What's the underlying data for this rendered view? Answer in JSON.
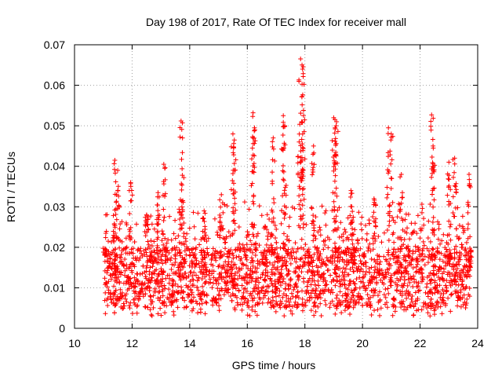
{
  "chart_data": {
    "type": "scatter",
    "title": "Day 198 of 2017, Rate Of TEC Index for receiver mall",
    "xlabel": "GPS time / hours",
    "ylabel": "ROTI / TECUs",
    "xlim": [
      10,
      24
    ],
    "ylim": [
      0,
      0.07
    ],
    "xticks": [
      10,
      12,
      14,
      16,
      18,
      20,
      22,
      24
    ],
    "xtick_labels": [
      "10",
      "12",
      "14",
      "16",
      "18",
      "20",
      "22",
      "24"
    ],
    "yticks": [
      0,
      0.01,
      0.02,
      0.03,
      0.04,
      0.05,
      0.06,
      0.07
    ],
    "ytick_labels": [
      "0",
      "0.01",
      "0.02",
      "0.03",
      "0.04",
      "0.05",
      "0.06",
      "0.07"
    ],
    "grid": true,
    "marker": "+",
    "marker_color": "#ff0000",
    "data_extent": {
      "x_start": 11.05,
      "x_end": 23.75
    },
    "series": [
      {
        "name": "ROTI",
        "description_points": [
          {
            "x": 11.05,
            "y": 0.018
          },
          {
            "x": 11.4,
            "y": 0.0415
          },
          {
            "x": 11.5,
            "y": 0.039
          },
          {
            "x": 11.95,
            "y": 0.036
          },
          {
            "x": 12.5,
            "y": 0.028
          },
          {
            "x": 12.9,
            "y": 0.0335
          },
          {
            "x": 13.1,
            "y": 0.0405
          },
          {
            "x": 13.7,
            "y": 0.0512
          },
          {
            "x": 13.75,
            "y": 0.047
          },
          {
            "x": 14.5,
            "y": 0.029
          },
          {
            "x": 15.1,
            "y": 0.033
          },
          {
            "x": 15.5,
            "y": 0.048
          },
          {
            "x": 15.55,
            "y": 0.0465
          },
          {
            "x": 16.2,
            "y": 0.0532
          },
          {
            "x": 16.25,
            "y": 0.0495
          },
          {
            "x": 16.9,
            "y": 0.047
          },
          {
            "x": 17.25,
            "y": 0.0525
          },
          {
            "x": 17.3,
            "y": 0.05
          },
          {
            "x": 17.85,
            "y": 0.0665
          },
          {
            "x": 17.9,
            "y": 0.065
          },
          {
            "x": 17.92,
            "y": 0.064
          },
          {
            "x": 17.95,
            "y": 0.0538
          },
          {
            "x": 17.8,
            "y": 0.046
          },
          {
            "x": 18.3,
            "y": 0.045
          },
          {
            "x": 19.0,
            "y": 0.052
          },
          {
            "x": 19.05,
            "y": 0.0495
          },
          {
            "x": 19.1,
            "y": 0.051
          },
          {
            "x": 19.6,
            "y": 0.034
          },
          {
            "x": 20.4,
            "y": 0.032
          },
          {
            "x": 20.9,
            "y": 0.0495
          },
          {
            "x": 21.0,
            "y": 0.048
          },
          {
            "x": 21.35,
            "y": 0.038
          },
          {
            "x": 22.4,
            "y": 0.0527
          },
          {
            "x": 22.45,
            "y": 0.045
          },
          {
            "x": 23.0,
            "y": 0.041
          },
          {
            "x": 23.2,
            "y": 0.042
          },
          {
            "x": 23.7,
            "y": 0.038
          },
          {
            "x": 23.75,
            "y": 0.015
          }
        ],
        "baseline_range": [
          0.005,
          0.02
        ],
        "min_observed": 0.003
      }
    ]
  }
}
